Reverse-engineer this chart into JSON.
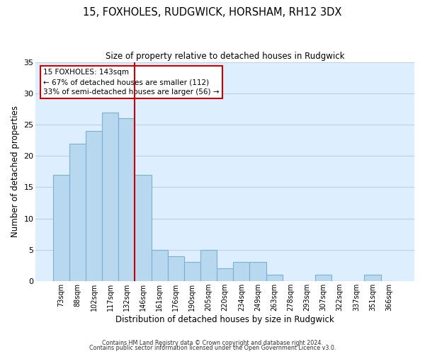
{
  "title": "15, FOXHOLES, RUDGWICK, HORSHAM, RH12 3DX",
  "subtitle": "Size of property relative to detached houses in Rudgwick",
  "xlabel": "Distribution of detached houses by size in Rudgwick",
  "ylabel": "Number of detached properties",
  "bar_labels": [
    "73sqm",
    "88sqm",
    "102sqm",
    "117sqm",
    "132sqm",
    "146sqm",
    "161sqm",
    "176sqm",
    "190sqm",
    "205sqm",
    "220sqm",
    "234sqm",
    "249sqm",
    "263sqm",
    "278sqm",
    "293sqm",
    "307sqm",
    "322sqm",
    "337sqm",
    "351sqm",
    "366sqm"
  ],
  "bar_values": [
    17,
    22,
    24,
    27,
    26,
    17,
    5,
    4,
    3,
    5,
    2,
    3,
    3,
    1,
    0,
    0,
    1,
    0,
    0,
    1,
    0
  ],
  "bar_color": "#b8d8f0",
  "bar_edge_color": "#7ab0d4",
  "vline_color": "#cc0000",
  "annotation_line1": "15 FOXHOLES: 143sqm",
  "annotation_line2": "← 67% of detached houses are smaller (112)",
  "annotation_line3": "33% of semi-detached houses are larger (56) →",
  "footer1": "Contains HM Land Registry data © Crown copyright and database right 2024.",
  "footer2": "Contains public sector information licensed under the Open Government Licence v3.0.",
  "ylim": [
    0,
    35
  ],
  "background_color": "#ffffff",
  "plot_bg_color": "#ddeeff",
  "grid_color": "#c0d0e0"
}
